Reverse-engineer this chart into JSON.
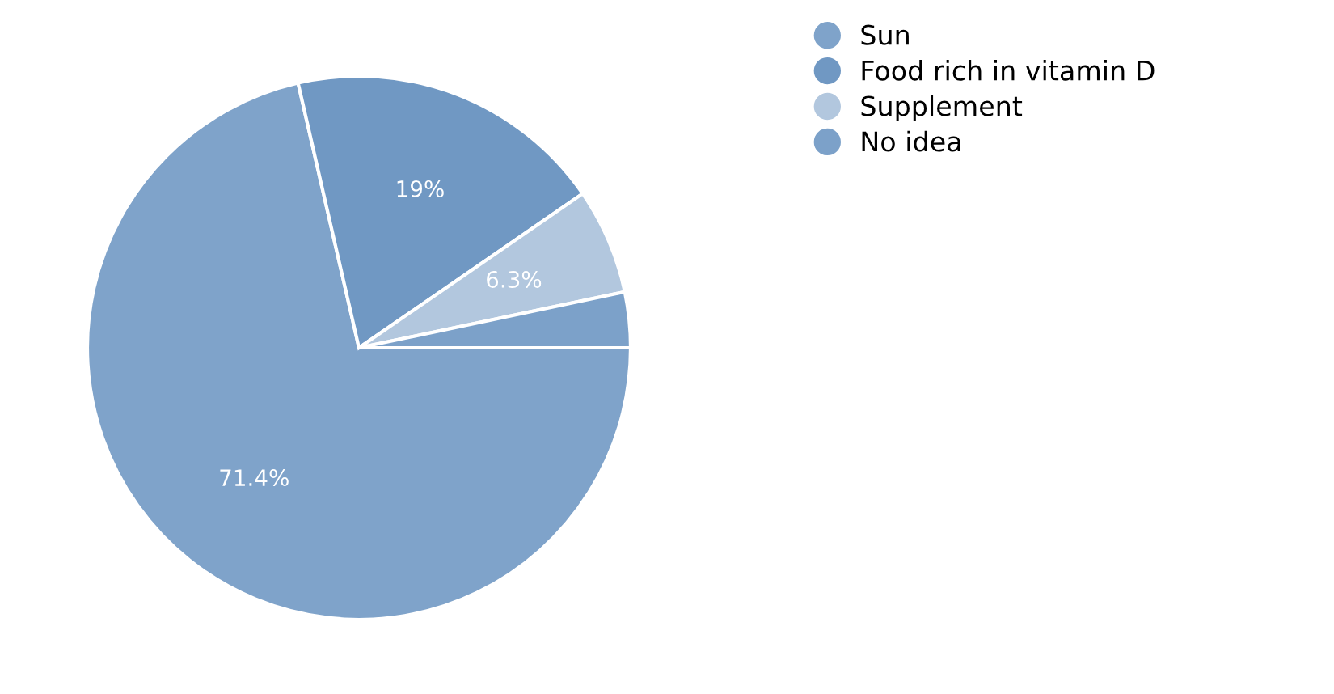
{
  "chart_data": {
    "type": "pie",
    "categories": [
      "Sun",
      "Food rich in vitamin D",
      "Supplement",
      "No idea"
    ],
    "values": [
      71.4,
      19,
      6.3,
      3.3
    ],
    "value_labels": [
      "71.4%",
      "19%",
      "6.3%",
      null
    ],
    "colors": [
      "#7fa3ca",
      "#7098c3",
      "#b2c7de",
      "#7ca1c9"
    ],
    "legend": "right"
  }
}
